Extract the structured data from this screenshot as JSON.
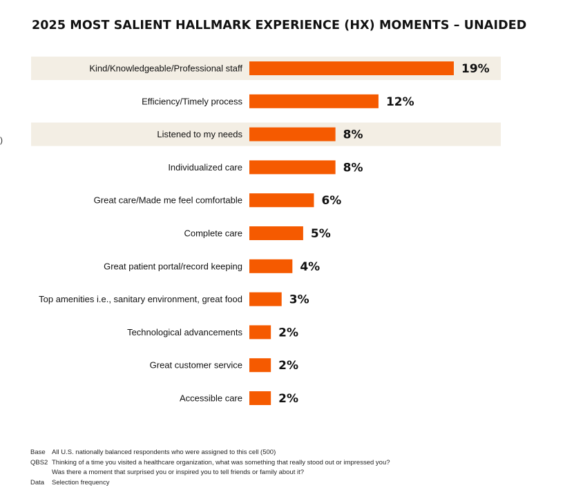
{
  "title": "2025 MOST SALIENT HALLMARK EXPERIENCE (HX) MOMENTS – UNAIDED",
  "stray_mark": ")",
  "colors": {
    "bar": "#f55a00",
    "highlight_band": "#f3eee4",
    "text": "#111111"
  },
  "chart_data": {
    "type": "bar",
    "orientation": "horizontal",
    "categories": [
      "Kind/Knowledgeable/Professional staff",
      "Efficiency/Timely process",
      "Listened to my needs",
      "Individualized care",
      "Great care/Made me feel comfortable",
      "Complete care",
      "Great patient portal/record keeping",
      "Top amenities i.e., sanitary environment, great food",
      "Technological advancements",
      "Great customer service",
      "Accessible care"
    ],
    "values": [
      19,
      12,
      8,
      8,
      6,
      5,
      4,
      3,
      2,
      2,
      2
    ],
    "value_labels": [
      "19%",
      "12%",
      "8%",
      "8%",
      "6%",
      "5%",
      "4%",
      "3%",
      "2%",
      "2%",
      "2%"
    ],
    "highlighted": [
      0,
      2
    ],
    "title": "2025 MOST SALIENT HALLMARK EXPERIENCE (HX) MOMENTS – UNAIDED",
    "xlabel": "",
    "ylabel": "",
    "grid": false,
    "legend": "none"
  },
  "footnotes": [
    {
      "key": "Base",
      "lines": [
        "All U.S. nationally balanced respondents who were assigned to this cell (500)"
      ]
    },
    {
      "key": "QBS2",
      "lines": [
        "Thinking of a time you visited a healthcare organization, what was something that really stood out or impressed you?",
        "Was there a moment that surprised you or inspired you to tell friends or family about it?"
      ]
    },
    {
      "key": "Data",
      "lines": [
        "Selection frequency"
      ]
    }
  ]
}
